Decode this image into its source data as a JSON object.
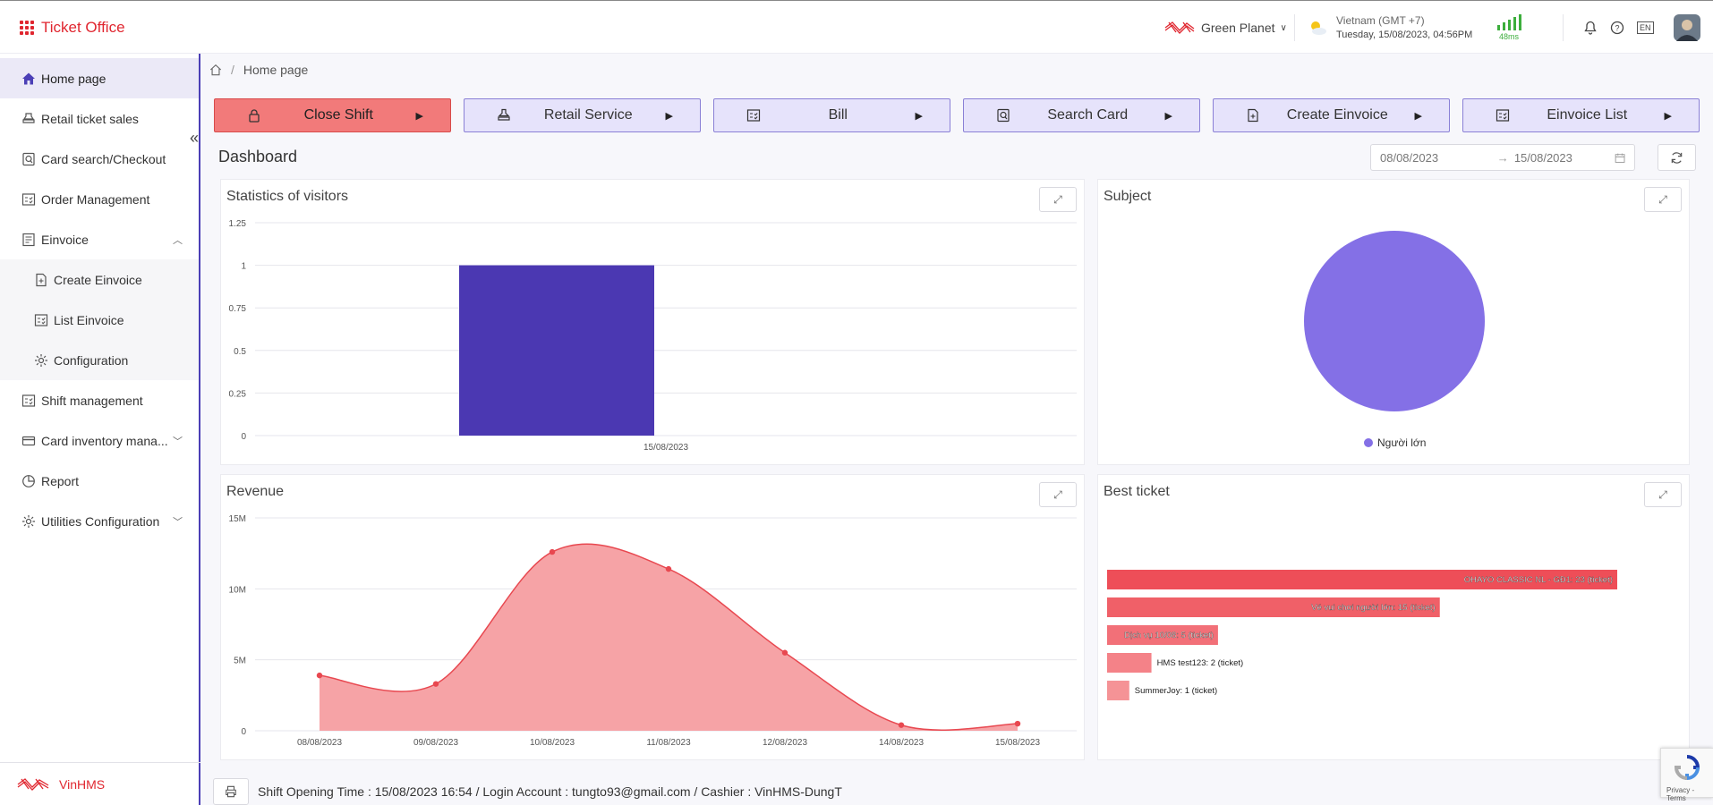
{
  "app": {
    "title": "Ticket Office"
  },
  "topbar": {
    "org": "Green Planet",
    "timezone": "Vietnam (GMT +7)",
    "datetime": "Tuesday, 15/08/2023, 04:56PM",
    "latency": "48ms",
    "lang": "EN"
  },
  "sidebar": {
    "items": [
      {
        "label": "Home page"
      },
      {
        "label": "Retail ticket sales"
      },
      {
        "label": "Card search/Checkout"
      },
      {
        "label": "Order Management"
      },
      {
        "label": "Einvoice"
      },
      {
        "label": "Create Einvoice"
      },
      {
        "label": "List Einvoice"
      },
      {
        "label": "Configuration"
      },
      {
        "label": "Shift management"
      },
      {
        "label": "Card inventory mana..."
      },
      {
        "label": "Report"
      },
      {
        "label": "Utilities Configuration"
      }
    ],
    "footer": "VinHMS"
  },
  "breadcrumb": {
    "current": "Home page",
    "sep": "/"
  },
  "actions": [
    {
      "label": "Close Shift"
    },
    {
      "label": "Retail Service"
    },
    {
      "label": "Bill"
    },
    {
      "label": "Search Card"
    },
    {
      "label": "Create Einvoice"
    },
    {
      "label": "Einvoice List"
    }
  ],
  "dashboard": {
    "title": "Dashboard",
    "date_from": "08/08/2023",
    "date_to": "15/08/2023",
    "date_arrow": "→"
  },
  "cards": {
    "visitors": "Statistics of visitors",
    "subject": "Subject",
    "revenue": "Revenue",
    "best": "Best ticket"
  },
  "status": {
    "text": "Shift Opening Time : 15/08/2023 16:54 / Login Account : tungto93@gmail.com / Cashier : VinHMS-DungT"
  },
  "recaptcha": {
    "text": "Privacy - Terms"
  },
  "chart_data": [
    {
      "type": "bar",
      "title": "Statistics of visitors",
      "categories": [
        "15/08/2023"
      ],
      "values": [
        1
      ],
      "ylim": [
        0,
        1.25
      ],
      "yticks": [
        "1.25",
        "1",
        "0.75",
        "0.5",
        "0.25",
        "0"
      ],
      "color": "#4b38b2"
    },
    {
      "type": "pie",
      "title": "Subject",
      "labels": [
        "Người lớn"
      ],
      "values": [
        1
      ],
      "color": "#8470e6"
    },
    {
      "type": "area",
      "title": "Revenue",
      "x": [
        "08/08/2023",
        "09/08/2023",
        "10/08/2023",
        "11/08/2023",
        "12/08/2023",
        "14/08/2023",
        "15/08/2023"
      ],
      "values": [
        3900000,
        3300000,
        12600000,
        11400000,
        5500000,
        400000,
        500000
      ],
      "ylim": [
        0,
        15000000
      ],
      "yticks": [
        "15M",
        "10M",
        "5M",
        "0"
      ],
      "color": "#e84850"
    },
    {
      "type": "bar",
      "orientation": "horizontal",
      "title": "Best ticket",
      "categories": [
        "OHAYO CLASSIC NL - GĐ1",
        "Vé vui chơi người lớn",
        "Dịch vụ 10/08",
        "HMS test123",
        "SummerJoy"
      ],
      "values": [
        23,
        15,
        5,
        2,
        1
      ],
      "unit": "(ticket)",
      "colors": [
        "#ee4e58",
        "#f06068",
        "#f27078",
        "#f48288",
        "#f59396"
      ]
    }
  ]
}
